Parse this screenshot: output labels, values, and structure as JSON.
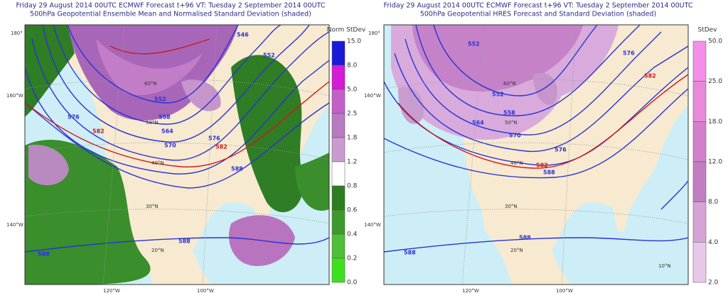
{
  "panels": [
    {
      "title_lines": [
        "Friday 29 August 2014 00UTC ECMWF Forecast t+96  VT: Tuesday 2 September 2014 00UTC",
        "500hPa Geopotential Ensemble Mean and Normalised Standard Deviation (shaded)"
      ],
      "colorbar": {
        "title": "Norm StDev",
        "labels": [
          "15.0",
          "8.0",
          "5.0",
          "2.5",
          "1.8",
          "1.2",
          "0.8",
          "0.6",
          "0.4",
          "0.2",
          "0.0"
        ],
        "colors": [
          "#1a1ad8",
          "#d61ad6",
          "#c45fc8",
          "#b87ac0",
          "#c99ccf",
          "#ffffff",
          "#2e7d22",
          "#3e9a2c",
          "#4fbe38",
          "#3ee01e"
        ]
      },
      "contour_labels": [
        "546",
        "552",
        "552",
        "558",
        "564",
        "570",
        "576",
        "576",
        "582",
        "582",
        "588",
        "588",
        "588"
      ],
      "graticule_labels": [
        "180°",
        "160°W",
        "140°W",
        "120°W",
        "100°W",
        "60°N",
        "50°N",
        "40°N",
        "30°N",
        "20°N"
      ]
    },
    {
      "title_lines": [
        "Friday 29 August 2014 00UTC ECMWF Forecast t+96  VT: Tuesday 2 September 2014 00UTC",
        "500hPa Geopotential HRES Forecast and Standard Deviation (shaded)"
      ],
      "colorbar": {
        "title": "StDev",
        "labels": [
          "50.0",
          "25.0",
          "18.0",
          "12.0",
          "8.0",
          "4.0",
          "2.0"
        ],
        "colors": [
          "#f48ee8",
          "#e88ad8",
          "#d47fcb",
          "#c27ec2",
          "#d6a3d6",
          "#e8c8ea"
        ]
      },
      "contour_labels": [
        "552",
        "552",
        "558",
        "564",
        "570",
        "576",
        "576",
        "582",
        "582",
        "588",
        "588",
        "588"
      ],
      "graticule_labels": [
        "180°",
        "160°W",
        "140°W",
        "120°W",
        "100°W",
        "60°N",
        "50°N",
        "40°N",
        "30°N",
        "20°N",
        "10°N"
      ]
    }
  ]
}
